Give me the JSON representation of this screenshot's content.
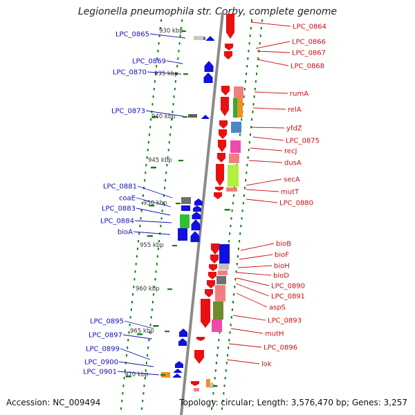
{
  "title": "Legionella pneumophila str. Corby, complete genome",
  "footer": {
    "accession": "Accession: NC_009494",
    "topology": "Topology: circular; Length: 3,576,470 bp; Genes: 3,257"
  },
  "colors": {
    "backbone": "#8a8a8a",
    "forward_gene": "#e81010",
    "reverse_gene": "#1010e0",
    "left_label": "#1010b8",
    "right_label": "#c81010",
    "gc_skew_dots": "#108010"
  },
  "scale": {
    "unit": "kbp",
    "ticks": [
      930,
      935,
      940,
      945,
      950,
      955,
      960,
      965,
      970
    ]
  },
  "left_labels": [
    "LPC_0865",
    "LPC_0869",
    "LPC_0870",
    "LPC_0873",
    "LPC_0881",
    "coaE",
    "LPC_0883",
    "LPC_0884",
    "bioA",
    "LPC_0895",
    "LPC_0897",
    "LPC_0899",
    "LPC_0900",
    "LPC_0901"
  ],
  "right_labels": [
    "LPC_0864",
    "LPC_0866",
    "LPC_0867",
    "LPC_0868",
    "rumA",
    "relA",
    "yfdZ",
    "LPC_0875",
    "recJ",
    "dusA",
    "secA",
    "mutT",
    "LPC_0880",
    "bioB",
    "bioF",
    "bioH",
    "bioD",
    "LPC_0890",
    "LPC_0891",
    "aspS",
    "LPC_0893",
    "mutH",
    "LPC_0896",
    "lok"
  ]
}
